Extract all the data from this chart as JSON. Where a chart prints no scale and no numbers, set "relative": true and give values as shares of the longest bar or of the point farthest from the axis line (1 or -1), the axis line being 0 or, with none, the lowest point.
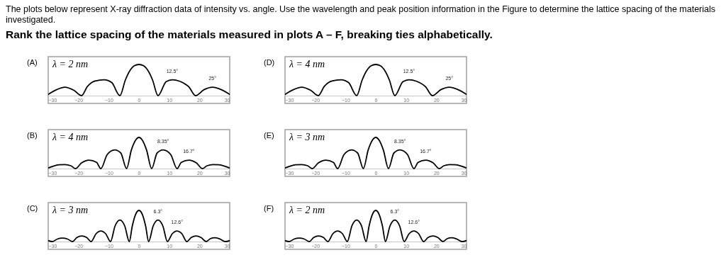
{
  "chart_data": [
    {
      "type": "other",
      "title": "The plots  below represent X-ray diffraction data of intensity vs. angle.  Use the wavelength and peak position information in the Figure to determine the lattice spacing of the materials investigated.",
      "subtitle": "Rank the lattice spacing of the materials measured in plots A – F, breaking ties alphabetically."
    },
    {
      "type": "line",
      "title": "(A)",
      "relative": true,
      "tick_labels": "x",
      "xlim": [
        -30,
        30
      ],
      "xticks": [
        -30,
        -20,
        -10,
        0,
        10,
        20,
        30
      ],
      "x": [
        -30,
        -27.5,
        -24.5,
        -21.5,
        -19,
        -17,
        -14.5,
        -11.5,
        -9,
        -6.3,
        -4.5,
        -3,
        -1.5,
        0,
        1.5,
        3,
        4.5,
        6.3,
        9,
        11,
        13.5,
        16.5,
        18.7,
        21.5,
        24.3,
        27.5,
        30
      ],
      "series": [
        {
          "color": "#000000",
          "values": [
            0.04,
            0.18,
            0.27,
            0.17,
            0,
            0.3,
            0.47,
            0.51,
            0.42,
            0,
            0.5,
            0.8,
            0.96,
            1,
            0.96,
            0.8,
            0.5,
            0,
            0.45,
            0.51,
            0.46,
            0.28,
            0,
            0.19,
            0.27,
            0.18,
            0.04
          ]
        }
      ],
      "annotations": [
        "λ = 2 nm",
        {
          "text": "12.5°",
          "x": 11,
          "y": 0.51
        },
        {
          "text": "25°",
          "x": 24.3,
          "y": 0.27
        }
      ]
    },
    {
      "type": "line",
      "title": "(D)",
      "relative": true,
      "tick_labels": "x",
      "xlim": [
        -30,
        30
      ],
      "xticks": [
        -30,
        -20,
        -10,
        0,
        10,
        20,
        30
      ],
      "x": [
        -30,
        -27.5,
        -24.5,
        -21.5,
        -19,
        -17,
        -14.5,
        -11.5,
        -9,
        -6.3,
        -4.5,
        -3,
        -1.5,
        0,
        1.5,
        3,
        4.5,
        6.3,
        9,
        11,
        13.5,
        16.5,
        18.7,
        21.5,
        24.3,
        27.5,
        30
      ],
      "series": [
        {
          "color": "#000000",
          "values": [
            0.04,
            0.18,
            0.27,
            0.17,
            0,
            0.3,
            0.47,
            0.51,
            0.42,
            0,
            0.5,
            0.8,
            0.96,
            1,
            0.96,
            0.8,
            0.5,
            0,
            0.45,
            0.51,
            0.46,
            0.28,
            0,
            0.19,
            0.27,
            0.18,
            0.04
          ]
        }
      ],
      "annotations": [
        "λ = 4 nm",
        {
          "text": "12.5°",
          "x": 11,
          "y": 0.51
        },
        {
          "text": "25°",
          "x": 24.3,
          "y": 0.27
        }
      ]
    },
    {
      "type": "line",
      "title": "(B)",
      "relative": true,
      "tick_labels": "x",
      "xlim": [
        -30,
        30
      ],
      "xticks": [
        -30,
        -20,
        -10,
        0,
        10,
        20,
        30
      ],
      "x": [
        -30,
        -28.5,
        -26.5,
        -24.5,
        -22.5,
        -21,
        -19,
        -16.5,
        -14,
        -12.6,
        -10.5,
        -8,
        -6,
        -4.1,
        -2.5,
        -1.2,
        0,
        1.2,
        2.5,
        4.2,
        6,
        8,
        10.5,
        12.6,
        14,
        16.5,
        19,
        21,
        22.5,
        24.5,
        26.5,
        28.5,
        30
      ],
      "series": [
        {
          "color": "#000000",
          "values": [
            0.02,
            0.07,
            0.12,
            0.13,
            0.09,
            0,
            0.18,
            0.27,
            0.2,
            0,
            0.45,
            0.6,
            0.5,
            0,
            0.6,
            0.9,
            1,
            0.9,
            0.6,
            0,
            0.5,
            0.6,
            0.45,
            0,
            0.2,
            0.27,
            0.18,
            0,
            0.09,
            0.13,
            0.12,
            0.07,
            0.02
          ]
        }
      ],
      "annotations": [
        "λ = 4 nm",
        {
          "text": "8.35°",
          "x": 8,
          "y": 0.6
        },
        {
          "text": "16.7°",
          "x": 16.5,
          "y": 0.27
        }
      ]
    },
    {
      "type": "line",
      "title": "(E)",
      "relative": true,
      "tick_labels": "x",
      "xlim": [
        -30,
        30
      ],
      "xticks": [
        -30,
        -20,
        -10,
        0,
        10,
        20,
        30
      ],
      "x": [
        -30,
        -28.5,
        -26.5,
        -24.5,
        -22.5,
        -21,
        -19,
        -16.5,
        -14,
        -12.6,
        -10.5,
        -8,
        -6,
        -4.1,
        -2.5,
        -1.2,
        0,
        1.2,
        2.5,
        4.2,
        6,
        8,
        10.5,
        12.6,
        14,
        16.5,
        19,
        21,
        22.5,
        24.5,
        26.5,
        28.5,
        30
      ],
      "series": [
        {
          "color": "#000000",
          "values": [
            0.02,
            0.07,
            0.12,
            0.13,
            0.09,
            0,
            0.18,
            0.27,
            0.2,
            0,
            0.45,
            0.6,
            0.5,
            0,
            0.6,
            0.9,
            1,
            0.9,
            0.6,
            0,
            0.5,
            0.6,
            0.45,
            0,
            0.2,
            0.27,
            0.18,
            0,
            0.09,
            0.13,
            0.12,
            0.07,
            0.02
          ]
        }
      ],
      "annotations": [
        "λ = 3 nm",
        {
          "text": "8.35°",
          "x": 8,
          "y": 0.6
        },
        {
          "text": "16.7°",
          "x": 16.5,
          "y": 0.27
        }
      ]
    },
    {
      "type": "line",
      "title": "(C)",
      "relative": true,
      "tick_labels": "x",
      "xlim": [
        -30,
        30
      ],
      "xticks": [
        -30,
        -20,
        -10,
        0,
        10,
        20,
        30
      ],
      "x": [
        -30,
        -28.6,
        -27,
        -25.3,
        -23.6,
        -22,
        -20.5,
        -18.9,
        -17.3,
        -15.8,
        -14.2,
        -12.6,
        -11,
        -9.4,
        -7.9,
        -6.3,
        -4.7,
        -3.2,
        -2.2,
        -1.2,
        0,
        1.2,
        2.2,
        3.2,
        4.7,
        6.3,
        7.9,
        9.4,
        11,
        12.6,
        14.2,
        15.8,
        17.3,
        18.9,
        20.5,
        22.2,
        23.6,
        25,
        26.6,
        28.6,
        30
      ],
      "series": [
        {
          "color": "#000000",
          "values": [
            0.03,
            0,
            0.08,
            0.11,
            0.08,
            0,
            0.13,
            0.18,
            0.13,
            0,
            0.25,
            0.34,
            0.25,
            0,
            0.5,
            0.69,
            0.5,
            0,
            0.5,
            0.85,
            1,
            0.85,
            0.5,
            0,
            0.5,
            0.69,
            0.5,
            0,
            0.25,
            0.34,
            0.25,
            0,
            0.13,
            0.18,
            0.13,
            0,
            0.09,
            0.12,
            0.09,
            0,
            0.03
          ]
        }
      ],
      "annotations": [
        "λ = 3 nm",
        {
          "text": "6.3°",
          "x": 6.3,
          "y": 0.69
        },
        {
          "text": "12.6°",
          "x": 12.6,
          "y": 0.34
        }
      ]
    },
    {
      "type": "line",
      "title": "(F)",
      "relative": true,
      "tick_labels": "x",
      "xlim": [
        -30,
        30
      ],
      "xticks": [
        -30,
        -20,
        -10,
        0,
        10,
        20,
        30
      ],
      "x": [
        -30,
        -28.6,
        -27,
        -25.3,
        -23.6,
        -22,
        -20.5,
        -18.9,
        -17.3,
        -15.8,
        -14.2,
        -12.6,
        -11,
        -9.4,
        -7.9,
        -6.3,
        -4.7,
        -3.2,
        -2.2,
        -1.2,
        0,
        1.2,
        2.2,
        3.2,
        4.7,
        6.3,
        7.9,
        9.4,
        11,
        12.6,
        14.2,
        15.8,
        17.3,
        18.9,
        20.5,
        22.2,
        23.6,
        25,
        26.6,
        28.6,
        30
      ],
      "series": [
        {
          "color": "#000000",
          "values": [
            0.03,
            0,
            0.08,
            0.11,
            0.08,
            0,
            0.13,
            0.18,
            0.13,
            0,
            0.25,
            0.34,
            0.25,
            0,
            0.5,
            0.69,
            0.5,
            0,
            0.5,
            0.85,
            1,
            0.85,
            0.5,
            0,
            0.5,
            0.69,
            0.5,
            0,
            0.25,
            0.34,
            0.25,
            0,
            0.13,
            0.18,
            0.13,
            0,
            0.09,
            0.12,
            0.09,
            0,
            0.03
          ]
        }
      ],
      "annotations": [
        "λ = 2 nm",
        {
          "text": "6.3°",
          "x": 6.3,
          "y": 0.69
        },
        {
          "text": "12.6°",
          "x": 12.6,
          "y": 0.34
        }
      ]
    }
  ]
}
